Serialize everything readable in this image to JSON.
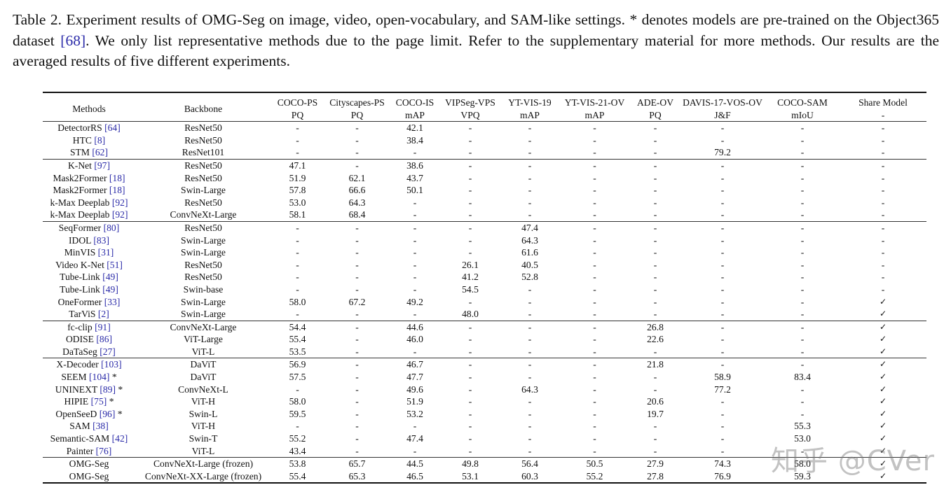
{
  "caption": {
    "prefix": "Table 2.  Experiment results of OMG-Seg on image, video, open-vocabulary, and SAM-like settings.  * denotes models are pre-trained on the Object365 dataset ",
    "cite": "[68]",
    "suffix": ".  We only list representative methods due to the page limit.  Refer to the supplementary material for more methods. Our results are the averaged results of five different experiments."
  },
  "table": {
    "headers": [
      {
        "top": "Methods",
        "bottom": ""
      },
      {
        "top": "Backbone",
        "bottom": ""
      },
      {
        "top": "COCO-PS",
        "bottom": "PQ"
      },
      {
        "top": "Cityscapes-PS",
        "bottom": "PQ"
      },
      {
        "top": "COCO-IS",
        "bottom": "mAP"
      },
      {
        "top": "VIPSeg-VPS",
        "bottom": "VPQ"
      },
      {
        "top": "YT-VIS-19",
        "bottom": "mAP"
      },
      {
        "top": "YT-VIS-21-OV",
        "bottom": "mAP"
      },
      {
        "top": "ADE-OV",
        "bottom": "PQ"
      },
      {
        "top": "DAVIS-17-VOS-OV",
        "bottom": "J&F"
      },
      {
        "top": "COCO-SAM",
        "bottom": "mIoU"
      },
      {
        "top": "Share Model",
        "bottom": "-"
      }
    ],
    "groups": [
      [
        {
          "method": "DetectorRS ",
          "cite": "[64]",
          "star": "",
          "backbone": "ResNet50",
          "values": [
            "-",
            "-",
            "42.1",
            "-",
            "-",
            "-",
            "-",
            "-",
            "-",
            "-"
          ]
        },
        {
          "method": "HTC ",
          "cite": "[8]",
          "star": "",
          "backbone": "ResNet50",
          "values": [
            "-",
            "-",
            "38.4",
            "-",
            "-",
            "-",
            "-",
            "-",
            "-",
            "-"
          ]
        },
        {
          "method": "STM ",
          "cite": "[62]",
          "star": "",
          "backbone": "ResNet101",
          "values": [
            "-",
            "-",
            "-",
            "-",
            "-",
            "-",
            "-",
            "79.2",
            "-",
            "-"
          ]
        }
      ],
      [
        {
          "method": "K-Net ",
          "cite": "[97]",
          "star": "",
          "backbone": "ResNet50",
          "values": [
            "47.1",
            "-",
            "38.6",
            "-",
            "-",
            "-",
            "-",
            "-",
            "-",
            "-"
          ]
        },
        {
          "method": "Mask2Former ",
          "cite": "[18]",
          "star": "",
          "backbone": "ResNet50",
          "values": [
            "51.9",
            "62.1",
            "43.7",
            "-",
            "-",
            "-",
            "-",
            "-",
            "-",
            "-"
          ]
        },
        {
          "method": "Mask2Former ",
          "cite": "[18]",
          "star": "",
          "backbone": "Swin-Large",
          "values": [
            "57.8",
            "66.6",
            "50.1",
            "-",
            "-",
            "-",
            "-",
            "-",
            "-",
            "-"
          ]
        },
        {
          "method": "k-Max Deeplab ",
          "cite": "[92]",
          "star": "",
          "backbone": "ResNet50",
          "values": [
            "53.0",
            "64.3",
            "-",
            "-",
            "-",
            "-",
            "-",
            "-",
            "-",
            "-"
          ]
        },
        {
          "method": "k-Max Deeplab ",
          "cite": "[92]",
          "star": "",
          "backbone": "ConvNeXt-Large",
          "values": [
            "58.1",
            "68.4",
            "-",
            "-",
            "-",
            "-",
            "-",
            "-",
            "-",
            "-"
          ]
        }
      ],
      [
        {
          "method": "SeqFormer ",
          "cite": "[80]",
          "star": "",
          "backbone": "ResNet50",
          "values": [
            "-",
            "-",
            "-",
            "-",
            "47.4",
            "-",
            "-",
            "-",
            "-",
            "-"
          ]
        },
        {
          "method": "IDOL ",
          "cite": "[83]",
          "star": "",
          "backbone": "Swin-Large",
          "values": [
            "-",
            "-",
            "-",
            "-",
            "64.3",
            "-",
            "-",
            "-",
            "-",
            "-"
          ]
        },
        {
          "method": "MinVIS ",
          "cite": "[31]",
          "star": "",
          "backbone": "Swin-Large",
          "values": [
            "-",
            "-",
            "-",
            "-",
            "61.6",
            "-",
            "-",
            "-",
            "-",
            "-"
          ]
        },
        {
          "method": "Video K-Net ",
          "cite": "[51]",
          "star": "",
          "backbone": "ResNet50",
          "values": [
            "-",
            "-",
            "-",
            "26.1",
            "40.5",
            "-",
            "-",
            "-",
            "-",
            "-"
          ]
        },
        {
          "method": "Tube-Link ",
          "cite": "[49]",
          "star": "",
          "backbone": "ResNet50",
          "values": [
            "-",
            "-",
            "-",
            "41.2",
            "52.8",
            "-",
            "-",
            "-",
            "-",
            "-"
          ]
        },
        {
          "method": "Tube-Link ",
          "cite": "[49]",
          "star": "",
          "backbone": "Swin-base",
          "values": [
            "-",
            "-",
            "-",
            "54.5",
            "-",
            "-",
            "-",
            "-",
            "-",
            "-"
          ]
        },
        {
          "method": "OneFormer ",
          "cite": "[33]",
          "star": "",
          "backbone": "Swin-Large",
          "values": [
            "58.0",
            "67.2",
            "49.2",
            "-",
            "-",
            "-",
            "-",
            "-",
            "-",
            "✓"
          ]
        },
        {
          "method": "TarViS ",
          "cite": "[2]",
          "star": "",
          "backbone": "Swin-Large",
          "values": [
            "-",
            "-",
            "-",
            "48.0",
            "-",
            "-",
            "-",
            "-",
            "-",
            "✓"
          ]
        }
      ],
      [
        {
          "method": "fc-clip ",
          "cite": "[91]",
          "star": "",
          "backbone": "ConvNeXt-Large",
          "values": [
            "54.4",
            "-",
            "44.6",
            "-",
            "-",
            "-",
            "26.8",
            "-",
            "-",
            "✓"
          ]
        },
        {
          "method": "ODISE ",
          "cite": "[86]",
          "star": "",
          "backbone": "ViT-Large",
          "values": [
            "55.4",
            "-",
            "46.0",
            "-",
            "-",
            "-",
            "22.6",
            "-",
            "-",
            "✓"
          ]
        },
        {
          "method": "DaTaSeg ",
          "cite": "[27]",
          "star": "",
          "backbone": "ViT-L",
          "values": [
            "53.5",
            "-",
            "-",
            "-",
            "-",
            "-",
            "-",
            "-",
            "-",
            "✓"
          ]
        }
      ],
      [
        {
          "method": "X-Decoder ",
          "cite": "[103]",
          "star": "",
          "backbone": "DaViT",
          "values": [
            "56.9",
            "-",
            "46.7",
            "-",
            "-",
            "-",
            "21.8",
            "-",
            "-",
            "✓"
          ]
        },
        {
          "method": "SEEM ",
          "cite": "[104]",
          "star": " *",
          "backbone": "DaViT",
          "values": [
            "57.5",
            "-",
            "47.7",
            "-",
            "-",
            "-",
            "-",
            "58.9",
            "83.4",
            "✓"
          ]
        },
        {
          "method": "UNINEXT ",
          "cite": "[89]",
          "star": " *",
          "backbone": "ConvNeXt-L",
          "values": [
            "-",
            "-",
            "49.6",
            "-",
            "64.3",
            "-",
            "-",
            "77.2",
            "-",
            "✓"
          ]
        },
        {
          "method": "HIPIE ",
          "cite": "[75]",
          "star": " *",
          "backbone": "ViT-H",
          "values": [
            "58.0",
            "-",
            "51.9",
            "-",
            "-",
            "-",
            "20.6",
            "-",
            "-",
            "✓"
          ]
        },
        {
          "method": "OpenSeeD ",
          "cite": "[96]",
          "star": " *",
          "backbone": "Swin-L",
          "values": [
            "59.5",
            "-",
            "53.2",
            "-",
            "-",
            "-",
            "19.7",
            "-",
            "-",
            "✓"
          ]
        },
        {
          "method": "SAM ",
          "cite": "[38]",
          "star": "",
          "backbone": "ViT-H",
          "values": [
            "-",
            "-",
            "-",
            "-",
            "-",
            "-",
            "-",
            "-",
            "55.3",
            "✓"
          ]
        },
        {
          "method": "Semantic-SAM ",
          "cite": "[42]",
          "star": "",
          "backbone": "Swin-T",
          "values": [
            "55.2",
            "-",
            "47.4",
            "-",
            "-",
            "-",
            "-",
            "-",
            "53.0",
            "✓"
          ]
        },
        {
          "method": "Painter ",
          "cite": "[76]",
          "star": "",
          "backbone": "ViT-L",
          "values": [
            "43.4",
            "-",
            "-",
            "-",
            "-",
            "-",
            "-",
            "-",
            "-",
            "✓"
          ]
        }
      ],
      [
        {
          "method": "OMG-Seg",
          "cite": "",
          "star": "",
          "backbone": "ConvNeXt-Large (frozen)",
          "values": [
            "53.8",
            "65.7",
            "44.5",
            "49.8",
            "56.4",
            "50.5",
            "27.9",
            "74.3",
            "58.0",
            "✓"
          ]
        },
        {
          "method": "OMG-Seg",
          "cite": "",
          "star": "",
          "backbone": "ConvNeXt-XX-Large (frozen)",
          "values": [
            "55.4",
            "65.3",
            "46.5",
            "53.1",
            "60.3",
            "55.2",
            "27.8",
            "76.9",
            "59.3",
            "✓"
          ]
        }
      ]
    ]
  },
  "watermark": "知乎 @CVer",
  "colors": {
    "cite": "#2a2aa8",
    "rule": "#111111"
  }
}
